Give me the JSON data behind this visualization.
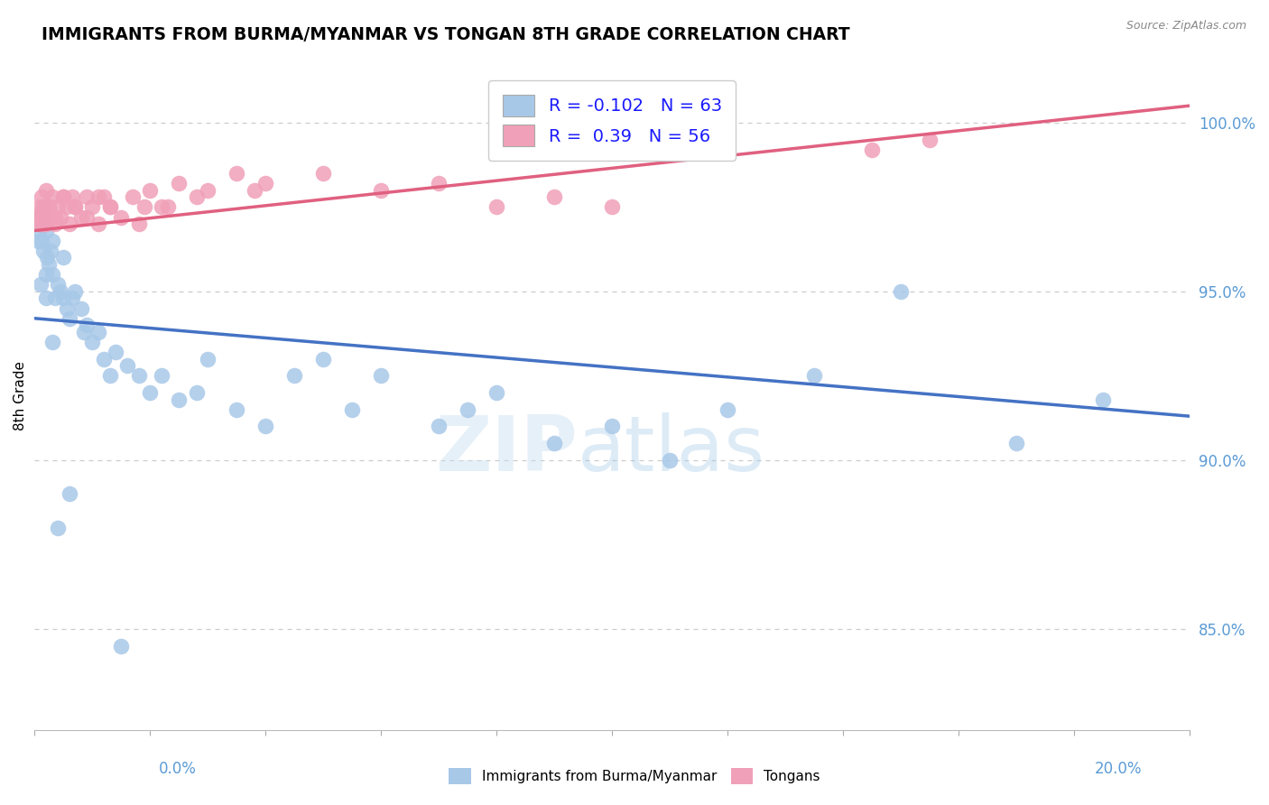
{
  "title": "IMMIGRANTS FROM BURMA/MYANMAR VS TONGAN 8TH GRADE CORRELATION CHART",
  "source": "Source: ZipAtlas.com",
  "ylabel": "8th Grade",
  "xmin": 0.0,
  "xmax": 20.0,
  "ymin": 82.0,
  "ymax": 101.8,
  "blue_R": -0.102,
  "blue_N": 63,
  "pink_R": 0.39,
  "pink_N": 56,
  "blue_color": "#a8c8e8",
  "pink_color": "#f0a0b8",
  "blue_line_color": "#4472c4",
  "pink_line_color": "#e06080",
  "legend_label_blue": "Immigrants from Burma/Myanmar",
  "legend_label_pink": "Tongans",
  "ytick_vals": [
    85.0,
    90.0,
    95.0,
    100.0
  ],
  "ytick_labels": [
    "85.0%",
    "90.0%",
    "95.0%",
    "100.0%"
  ],
  "blue_line_x0": 0.0,
  "blue_line_y0": 94.2,
  "blue_line_x1": 20.0,
  "blue_line_y1": 91.3,
  "pink_line_x0": 0.0,
  "pink_line_y0": 96.8,
  "pink_line_x1": 20.0,
  "pink_line_y1": 100.5,
  "blue_dots_x": [
    0.05,
    0.07,
    0.08,
    0.1,
    0.12,
    0.13,
    0.15,
    0.15,
    0.18,
    0.2,
    0.2,
    0.22,
    0.25,
    0.28,
    0.3,
    0.3,
    0.35,
    0.4,
    0.45,
    0.5,
    0.5,
    0.55,
    0.6,
    0.65,
    0.7,
    0.8,
    0.85,
    0.9,
    1.0,
    1.1,
    1.2,
    1.3,
    1.4,
    1.6,
    1.8,
    2.0,
    2.2,
    2.5,
    2.8,
    3.0,
    3.5,
    4.0,
    4.5,
    5.0,
    5.5,
    6.0,
    7.0,
    7.5,
    8.0,
    9.0,
    10.0,
    11.0,
    12.0,
    13.5,
    15.0,
    17.0,
    18.5,
    0.1,
    0.2,
    0.3,
    0.4,
    0.6,
    1.5
  ],
  "blue_dots_y": [
    96.5,
    97.0,
    96.8,
    97.2,
    96.5,
    97.0,
    97.5,
    96.2,
    97.0,
    96.8,
    95.5,
    96.0,
    95.8,
    96.2,
    95.5,
    96.5,
    94.8,
    95.2,
    95.0,
    94.8,
    96.0,
    94.5,
    94.2,
    94.8,
    95.0,
    94.5,
    93.8,
    94.0,
    93.5,
    93.8,
    93.0,
    92.5,
    93.2,
    92.8,
    92.5,
    92.0,
    92.5,
    91.8,
    92.0,
    93.0,
    91.5,
    91.0,
    92.5,
    93.0,
    91.5,
    92.5,
    91.0,
    91.5,
    92.0,
    90.5,
    91.0,
    90.0,
    91.5,
    92.5,
    95.0,
    90.5,
    91.8,
    95.2,
    94.8,
    93.5,
    88.0,
    89.0,
    84.5
  ],
  "pink_dots_x": [
    0.05,
    0.07,
    0.08,
    0.1,
    0.12,
    0.13,
    0.15,
    0.18,
    0.2,
    0.2,
    0.25,
    0.28,
    0.3,
    0.35,
    0.4,
    0.45,
    0.5,
    0.55,
    0.6,
    0.65,
    0.7,
    0.8,
    0.9,
    1.0,
    1.1,
    1.2,
    1.3,
    1.5,
    1.7,
    1.9,
    2.0,
    2.2,
    2.5,
    2.8,
    3.0,
    3.5,
    4.0,
    5.0,
    6.0,
    7.0,
    8.0,
    9.0,
    10.0,
    14.5,
    15.5,
    0.15,
    0.25,
    0.35,
    0.5,
    0.7,
    0.9,
    1.1,
    1.3,
    1.8,
    2.3,
    3.8
  ],
  "pink_dots_y": [
    97.2,
    97.0,
    97.5,
    97.3,
    97.8,
    97.0,
    97.5,
    97.2,
    97.0,
    98.0,
    97.5,
    97.2,
    97.8,
    97.0,
    97.5,
    97.2,
    97.8,
    97.5,
    97.0,
    97.8,
    97.5,
    97.2,
    97.8,
    97.5,
    97.0,
    97.8,
    97.5,
    97.2,
    97.8,
    97.5,
    98.0,
    97.5,
    98.2,
    97.8,
    98.0,
    98.5,
    98.2,
    98.5,
    98.0,
    98.2,
    97.5,
    97.8,
    97.5,
    99.2,
    99.5,
    97.0,
    97.5,
    97.2,
    97.8,
    97.5,
    97.2,
    97.8,
    97.5,
    97.0,
    97.5,
    98.0
  ]
}
